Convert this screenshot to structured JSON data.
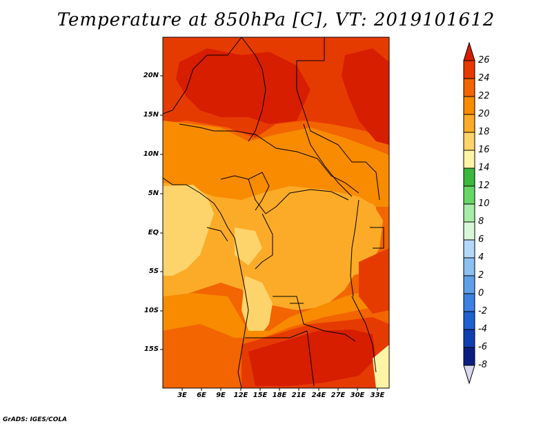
{
  "title": "Temperature at 850hPa [C], VT: 2019101612",
  "credit": "GrADS: IGES/COLA",
  "lat_labels": [
    "20N",
    "15N",
    "10N",
    "5N",
    "EQ",
    "5S",
    "10S",
    "15S"
  ],
  "lon_labels": [
    "3E",
    "6E",
    "9E",
    "12E",
    "15E",
    "18E",
    "21E",
    "24E",
    "27E",
    "30E",
    "33E"
  ],
  "colorbar": {
    "levels": [
      "26",
      "24",
      "22",
      "20",
      "18",
      "16",
      "14",
      "12",
      "10",
      "8",
      "6",
      "4",
      "2",
      "0",
      "-2",
      "-4",
      "-6",
      "-8"
    ],
    "colors": [
      "#d71e00",
      "#e63b00",
      "#f26500",
      "#f88b00",
      "#fbab28",
      "#fdd36b",
      "#fff3a6",
      "#3cb83c",
      "#67d667",
      "#a7eca7",
      "#d8f6d8",
      "#b4d8f8",
      "#8cc0f0",
      "#5ea0e8",
      "#3c80e0",
      "#2060d0",
      "#1040b0",
      "#0a1f80",
      "#d8d8f0"
    ]
  },
  "map": {
    "lon_range": [
      0,
      34.5
    ],
    "lat_range": [
      -19.5,
      24.5
    ],
    "palette": {
      "t26": "#d71e00",
      "t24": "#e63b00",
      "t22": "#f26500",
      "t20": "#f88b00",
      "t18": "#fbab28",
      "t16": "#fdd36b",
      "t14": "#fff3a6"
    }
  }
}
